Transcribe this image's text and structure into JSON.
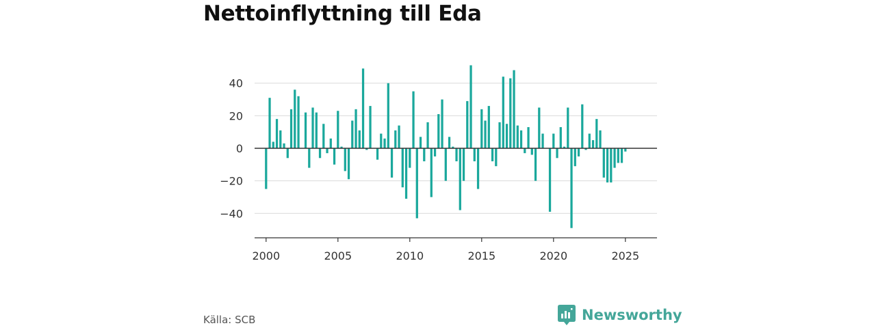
{
  "chart_data": {
    "type": "bar",
    "title": "Nettoinflyttning till Eda",
    "xlabel": "",
    "ylabel": "",
    "ylim": [
      -55,
      55
    ],
    "xlim": [
      1999.2,
      2027.2
    ],
    "yticks": [
      40,
      20,
      0,
      -20,
      -40
    ],
    "ytick_labels": [
      "40",
      "20",
      "0",
      "−20",
      "−40"
    ],
    "xticks": [
      2000,
      2005,
      2010,
      2015,
      2020,
      2025
    ],
    "xtick_labels": [
      "2000",
      "2005",
      "2010",
      "2015",
      "2020",
      "2025"
    ],
    "bar_color": "#1aa89c",
    "grid": true,
    "start_year": 2000,
    "values": [
      -25,
      31,
      4,
      18,
      11,
      3,
      -6,
      24,
      36,
      32,
      0,
      22,
      -12,
      25,
      22,
      -6,
      15,
      -3,
      6,
      -10,
      23,
      1,
      -14,
      -19,
      17,
      24,
      11,
      49,
      -1,
      26,
      0,
      -7,
      9,
      6,
      40,
      -18,
      11,
      14,
      -24,
      -31,
      -12,
      35,
      -43,
      7,
      -8,
      16,
      -30,
      -5,
      21,
      30,
      -20,
      7,
      1,
      -8,
      -38,
      -20,
      29,
      51,
      -8,
      -25,
      24,
      17,
      26,
      -8,
      -11,
      16,
      44,
      15,
      43,
      48,
      14,
      11,
      -3,
      13,
      -4,
      -20,
      25,
      9,
      0,
      -39,
      9,
      -6,
      13,
      1,
      25,
      -49,
      -11,
      -5,
      27,
      -1,
      9,
      5,
      18,
      11,
      -18,
      -21,
      -21,
      -12,
      -9,
      -9,
      -2
    ]
  },
  "footer": {
    "source": "Källa: SCB",
    "brand": "Newsworthy",
    "brand_color": "#44a699",
    "brand_icon": "newsworthy-logo-icon"
  }
}
